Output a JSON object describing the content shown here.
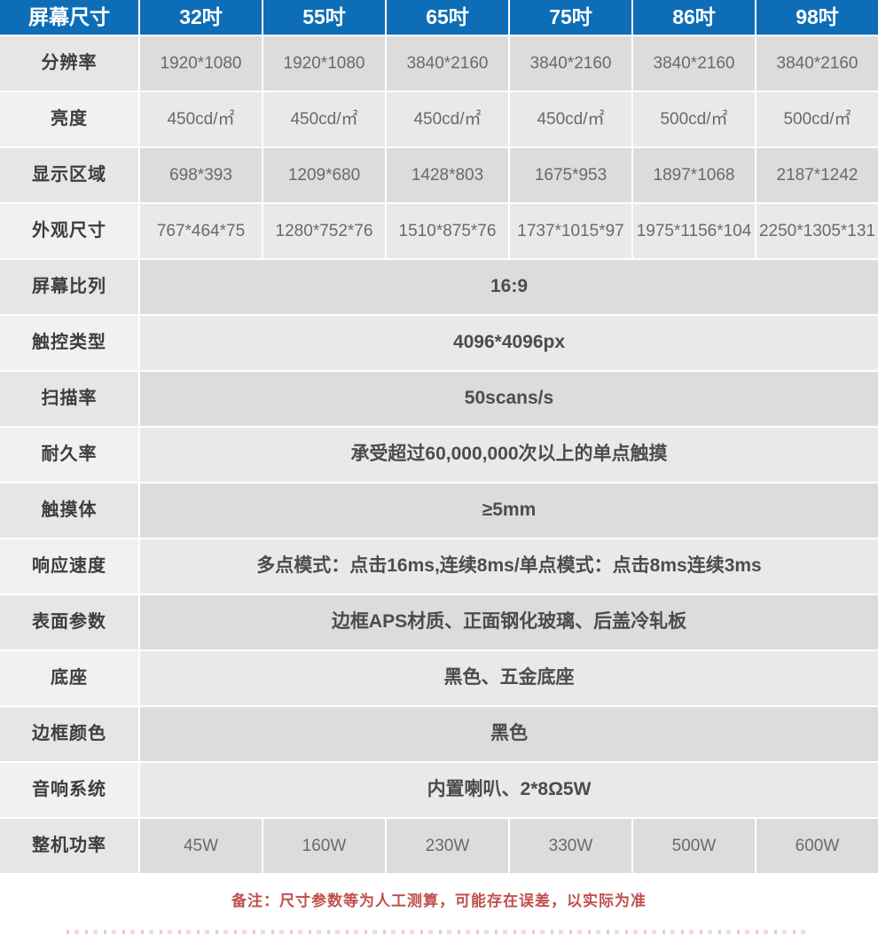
{
  "theme": {
    "header_bg": "#0d6eb7",
    "header_text_color": "#ffffff",
    "label_bg_odd": "#e6e6e6",
    "label_bg_even": "#f1f1f1",
    "cell_bg_odd": "#dcdcdc",
    "cell_bg_even": "#e9e9e9",
    "note_color": "#c0504d"
  },
  "table": {
    "header": {
      "label": "屏幕尺寸",
      "columns": [
        "32吋",
        "55吋",
        "65吋",
        "75吋",
        "86吋",
        "98吋"
      ]
    },
    "rows": [
      {
        "label": "分辨率",
        "values": [
          "1920*1080",
          "1920*1080",
          "3840*2160",
          "3840*2160",
          "3840*2160",
          "3840*2160"
        ]
      },
      {
        "label": "亮度",
        "values": [
          "450cd/㎡",
          "450cd/㎡",
          "450cd/㎡",
          "450cd/㎡",
          "500cd/㎡",
          "500cd/㎡"
        ]
      },
      {
        "label": "显示区域",
        "values": [
          "698*393",
          "1209*680",
          "1428*803",
          "1675*953",
          "1897*1068",
          "2187*1242"
        ]
      },
      {
        "label": "外观尺寸",
        "values": [
          "767*464*75",
          "1280*752*76",
          "1510*875*76",
          "1737*1015*97",
          "1975*1156*104",
          "2250*1305*131"
        ]
      },
      {
        "label": "屏幕比列",
        "span": "16:9"
      },
      {
        "label": "触控类型",
        "span": "4096*4096px"
      },
      {
        "label": "扫描率",
        "span": "50scans/s"
      },
      {
        "label": "耐久率",
        "span": "承受超过60,000,000次以上的单点触摸"
      },
      {
        "label": "触摸体",
        "span": "≥5mm"
      },
      {
        "label": "响应速度",
        "span": "多点模式：点击16ms,连续8ms/单点模式：点击8ms连续3ms"
      },
      {
        "label": "表面参数",
        "span": "边框APS材质、正面钢化玻璃、后盖冷轧板"
      },
      {
        "label": "底座",
        "span": "黑色、五金底座"
      },
      {
        "label": "边框颜色",
        "span": "黑色"
      },
      {
        "label": "音响系统",
        "span": "内置喇叭、2*8Ω5W"
      },
      {
        "label": "整机功率",
        "values": [
          "45W",
          "160W",
          "230W",
          "330W",
          "500W",
          "600W"
        ]
      }
    ]
  },
  "footer": {
    "note": "备注：尺寸参数等为人工测算，可能存在误差，以实际为准"
  }
}
